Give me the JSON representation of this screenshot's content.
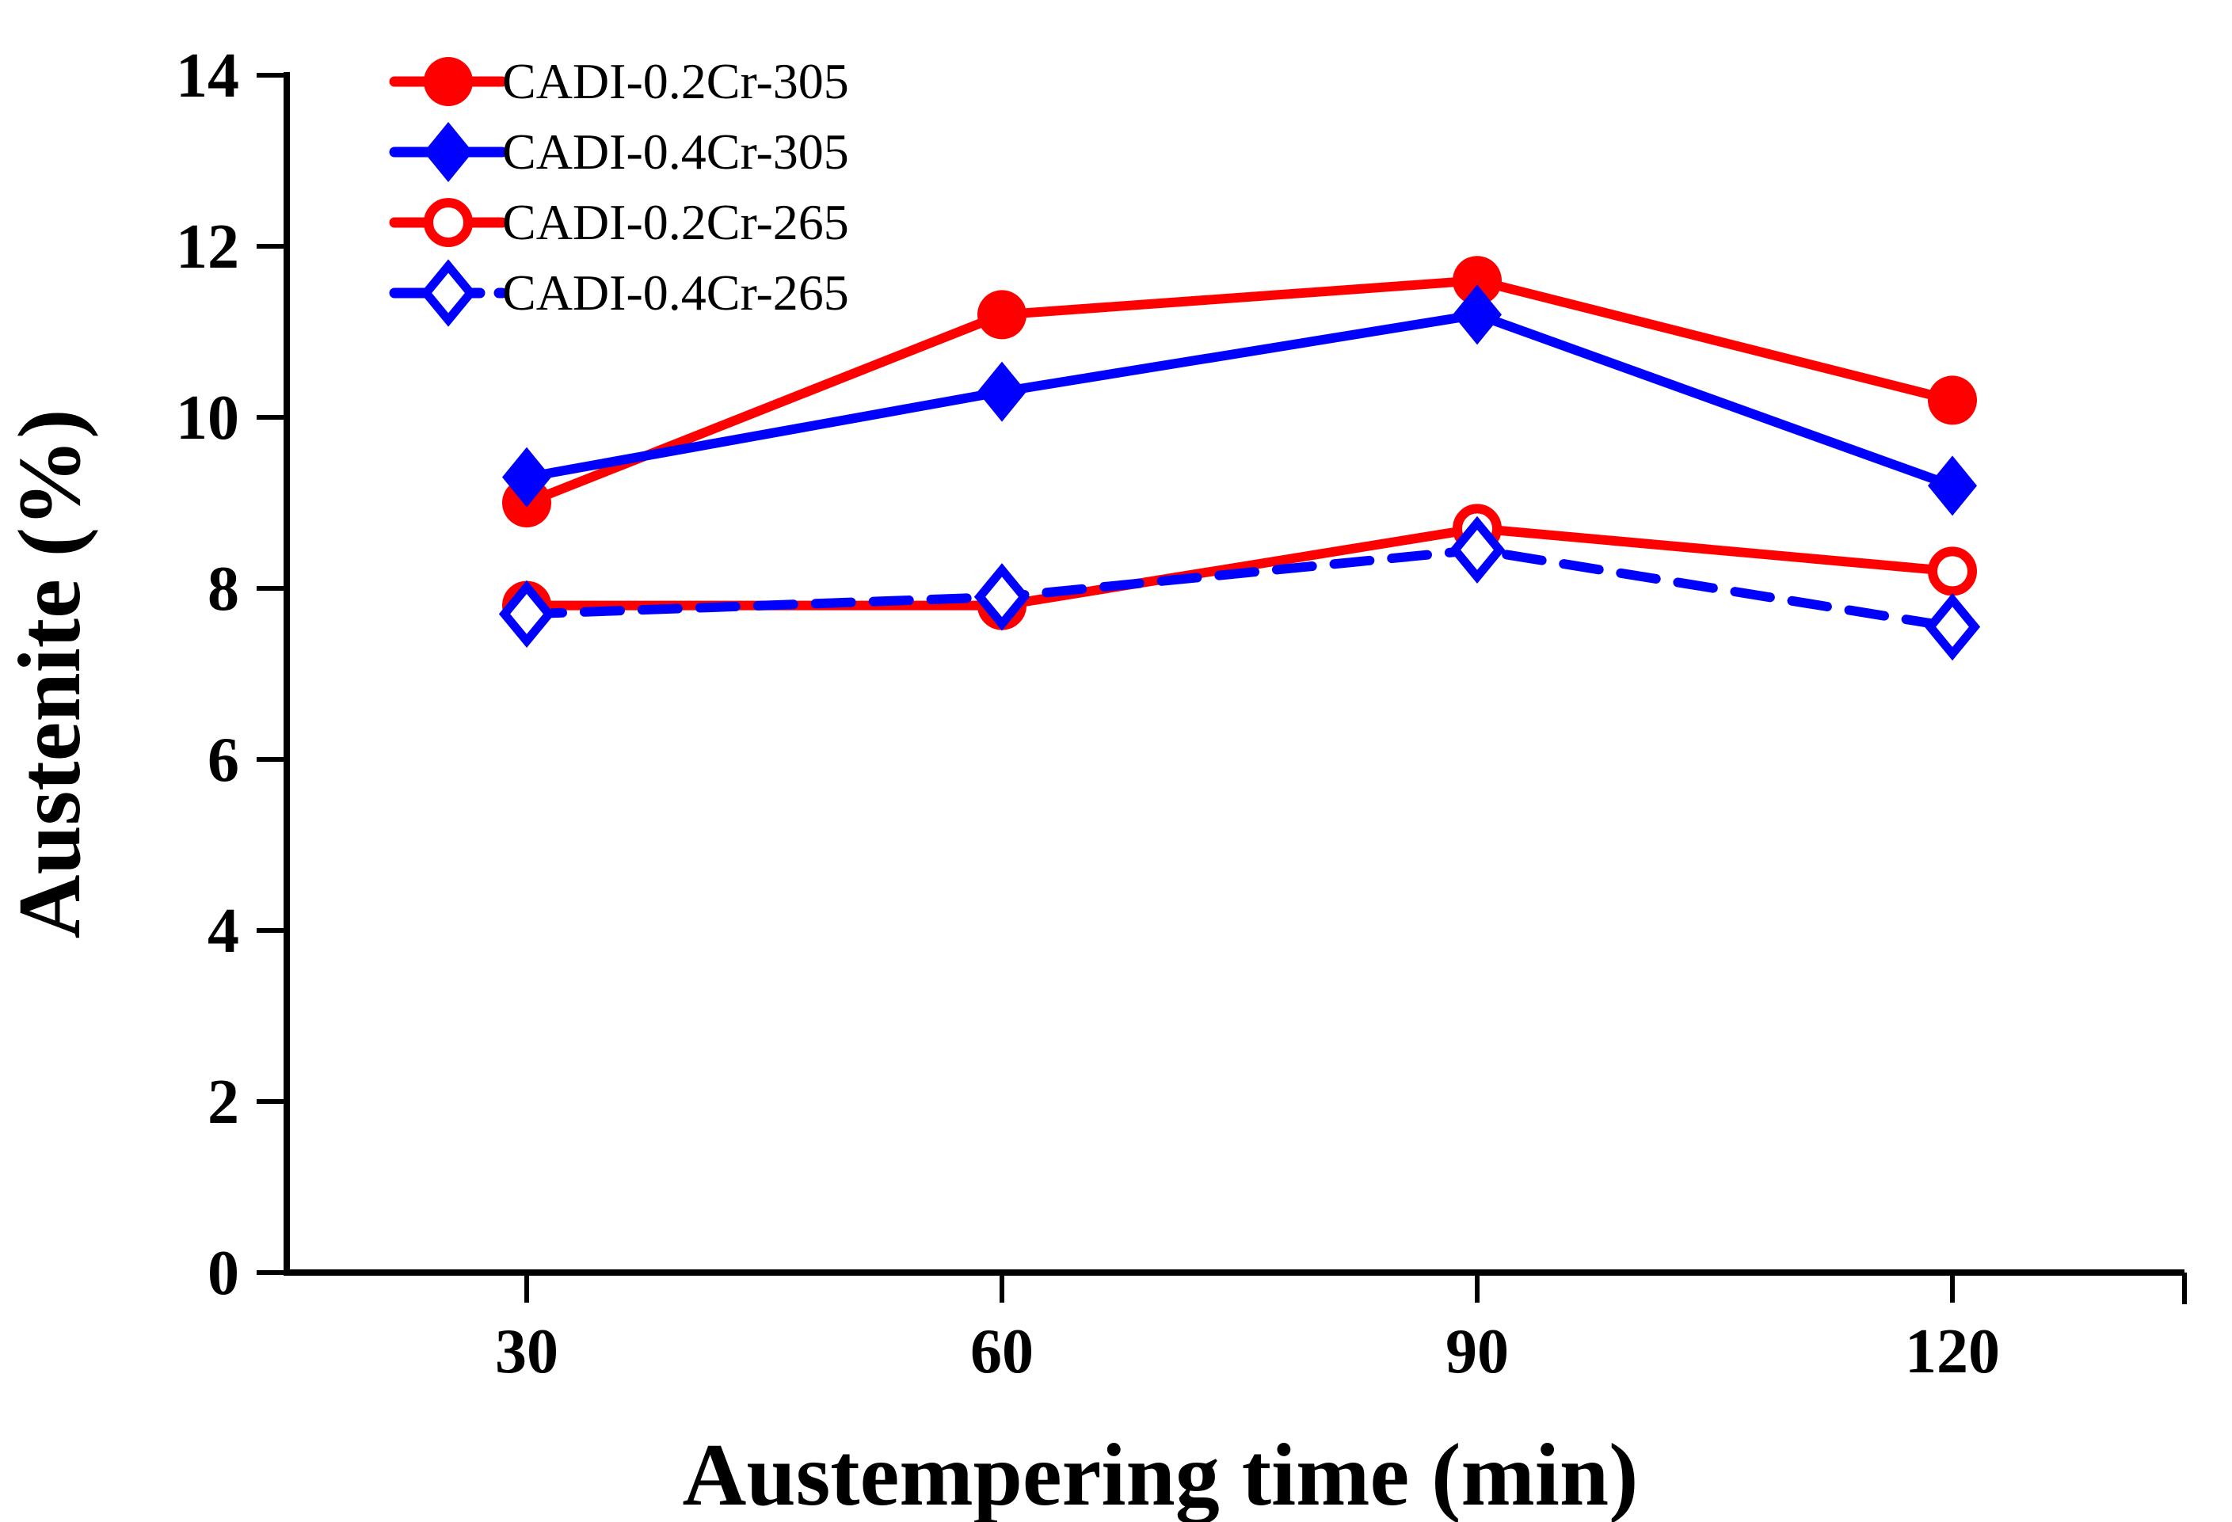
{
  "chart_data": {
    "type": "line",
    "xlabel": "Austempering time (min)",
    "ylabel": "Austenite (%)",
    "x": [
      30,
      60,
      90,
      120
    ],
    "xticks": [
      30,
      60,
      90,
      120
    ],
    "yticks": [
      14,
      12,
      10,
      8,
      6,
      4,
      2,
      0
    ],
    "ylim": [
      0,
      14
    ],
    "grid": false,
    "legend_position": "top-left",
    "axis_color": "#000000",
    "background_color": "#ffffff",
    "series": [
      {
        "name": "CADI-0.2Cr-305",
        "color": "#ff0000",
        "marker": "circle-filled",
        "line_style": "solid",
        "values": [
          9.0,
          11.2,
          11.6,
          10.2
        ]
      },
      {
        "name": "CADI-0.4Cr-305",
        "color": "#0000ff",
        "marker": "diamond-filled",
        "line_style": "solid",
        "values": [
          9.3,
          10.3,
          11.2,
          9.2
        ]
      },
      {
        "name": "CADI-0.2Cr-265",
        "color": "#ff0000",
        "marker": "circle-open",
        "line_style": "solid",
        "values": [
          7.8,
          7.8,
          8.7,
          8.2
        ]
      },
      {
        "name": "CADI-0.4Cr-265",
        "color": "#0000ff",
        "marker": "diamond-open",
        "line_style": "dashed",
        "values": [
          7.7,
          7.9,
          8.45,
          7.55
        ]
      }
    ]
  }
}
